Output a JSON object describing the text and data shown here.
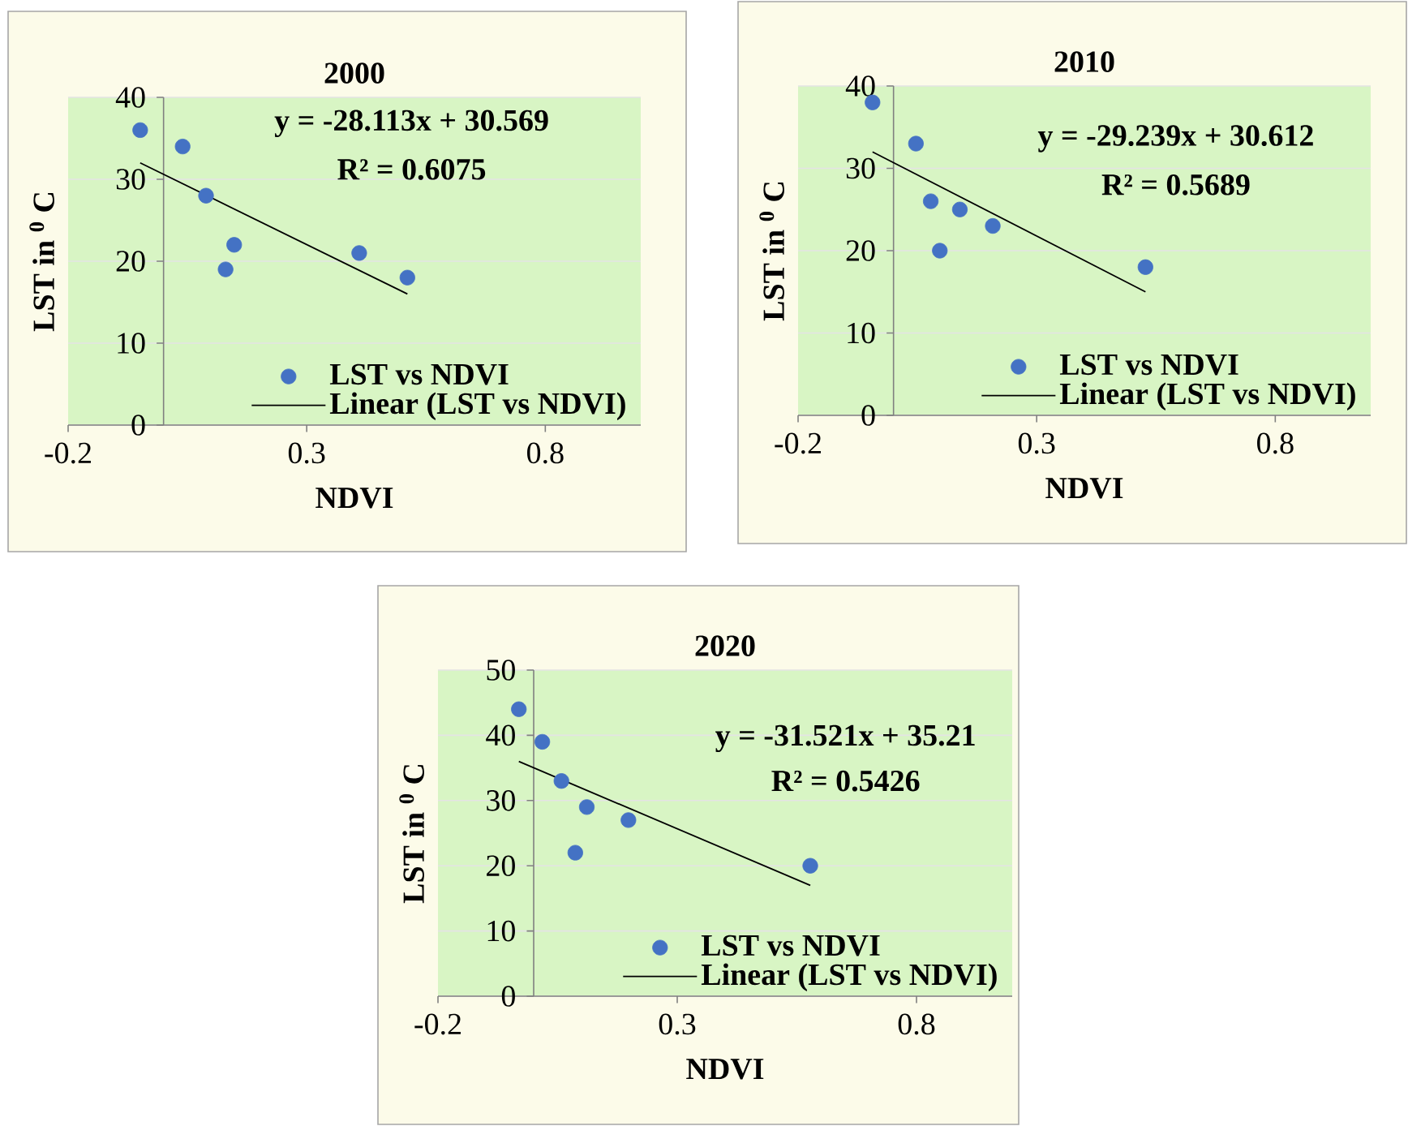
{
  "chart_data": [
    {
      "type": "scatter",
      "title": "2000",
      "xlabel": "NDVI",
      "ylabel": "LST in $^{0}$ C",
      "xlim": [
        -0.2,
        1.0
      ],
      "ylim": [
        0,
        40
      ],
      "xticks": [
        -0.2,
        0.3,
        0.8
      ],
      "yticks": [
        0,
        10,
        20,
        30,
        40
      ],
      "grid": "y",
      "legend": "bottom right",
      "annotations": [
        "y = -28.113x + 30.569",
        "R² = 0.6075"
      ],
      "series": [
        {
          "name": "LST vs NDVI",
          "color": "#4472c4",
          "marker": "circle",
          "x": [
            -0.049,
            0.04,
            0.089,
            0.148,
            0.13,
            0.41,
            0.511
          ],
          "values": [
            36,
            34,
            28,
            22,
            19,
            21,
            18
          ]
        },
        {
          "name": "Linear (LST vs NDVI)",
          "type": "line",
          "color": "#000000",
          "marker": "none",
          "x": [
            -0.049,
            0.511
          ],
          "values": [
            32,
            16
          ]
        }
      ]
    },
    {
      "type": "scatter",
      "title": "2010",
      "xlabel": "NDVI",
      "ylabel": "LST in $^{0}$ C",
      "xlim": [
        -0.2,
        1.0
      ],
      "ylim": [
        0,
        40
      ],
      "xticks": [
        -0.2,
        0.3,
        0.8
      ],
      "yticks": [
        0,
        10,
        20,
        30,
        40
      ],
      "grid": "y",
      "legend": "bottom right",
      "annotations": [
        "y = -29.239x + 30.612",
        "R² = 0.5689"
      ],
      "series": [
        {
          "name": "LST vs NDVI",
          "color": "#4472c4",
          "marker": "circle",
          "x": [
            -0.044,
            0.047,
            0.078,
            0.139,
            0.208,
            0.097,
            0.528
          ],
          "values": [
            38,
            33,
            26,
            25,
            23,
            20,
            18
          ]
        },
        {
          "name": "Linear (LST vs NDVI)",
          "type": "line",
          "color": "#000000",
          "marker": "none",
          "x": [
            -0.044,
            0.528
          ],
          "values": [
            32,
            15
          ]
        }
      ]
    },
    {
      "type": "scatter",
      "title": "2020",
      "xlabel": "NDVI",
      "ylabel": "LST in $^{0}$ C",
      "xlim": [
        -0.2,
        1.0
      ],
      "ylim": [
        0,
        50
      ],
      "xticks": [
        -0.2,
        0.3,
        0.8
      ],
      "yticks": [
        0,
        10,
        20,
        30,
        40,
        50
      ],
      "grid": "y",
      "legend": "bottom right",
      "annotations": [
        "y = -31.521x + 35.21",
        "R² = 0.5426"
      ],
      "series": [
        {
          "name": "LST vs NDVI",
          "color": "#4472c4",
          "marker": "circle",
          "x": [
            -0.031,
            0.018,
            0.058,
            0.111,
            0.198,
            0.087,
            0.578
          ],
          "values": [
            44,
            39,
            33,
            29,
            27,
            22,
            20
          ]
        },
        {
          "name": "Linear (LST vs NDVI)",
          "type": "line",
          "color": "#000000",
          "marker": "none",
          "x": [
            -0.031,
            0.578
          ],
          "values": [
            36,
            17
          ]
        }
      ]
    }
  ]
}
